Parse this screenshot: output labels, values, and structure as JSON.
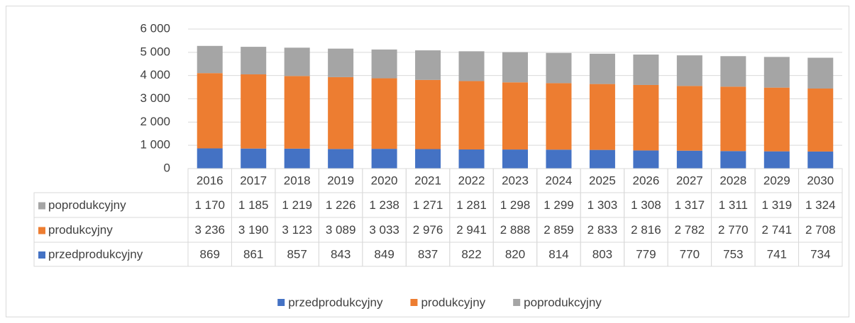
{
  "chart_data": {
    "type": "stacked_bar",
    "categories": [
      "2016",
      "2017",
      "2018",
      "2019",
      "2020",
      "2021",
      "2022",
      "2023",
      "2024",
      "2025",
      "2026",
      "2027",
      "2028",
      "2029",
      "2030"
    ],
    "series": [
      {
        "name": "przedprodukcyjny",
        "color": "#4472c4",
        "values": [
          869,
          861,
          857,
          843,
          849,
          837,
          822,
          820,
          814,
          803,
          779,
          770,
          753,
          741,
          734
        ]
      },
      {
        "name": "produkcyjny",
        "color": "#ed7d31",
        "values": [
          3236,
          3190,
          3123,
          3089,
          3033,
          2976,
          2941,
          2888,
          2859,
          2833,
          2816,
          2782,
          2770,
          2741,
          2708
        ],
        "value_labels": [
          "3 236",
          "3 190",
          "3 123",
          "3 089",
          "3 033",
          "2 976",
          "2 941",
          "2 888",
          "2 859",
          "2 833",
          "2 816",
          "2 782",
          "2 770",
          "2 741",
          "2 708"
        ]
      },
      {
        "name": "poprodukcyjny",
        "color": "#a5a5a5",
        "values": [
          1170,
          1185,
          1219,
          1226,
          1238,
          1271,
          1281,
          1298,
          1299,
          1303,
          1308,
          1317,
          1311,
          1319,
          1324
        ],
        "value_labels": [
          "1 170",
          "1 185",
          "1 219",
          "1 226",
          "1 238",
          "1 271",
          "1 281",
          "1 298",
          "1 299",
          "1 303",
          "1 308",
          "1 317",
          "1 311",
          "1 319",
          "1 324"
        ]
      }
    ],
    "ylim": [
      0,
      6000
    ],
    "yticks": [
      0,
      {
        "value": 1000,
        "label": "1 000"
      },
      {
        "value": 2000,
        "label": "2 000"
      },
      {
        "value": 3000,
        "label": "3 000"
      },
      {
        "value": 4000,
        "label": "4 000"
      },
      {
        "value": 5000,
        "label": "5 000"
      },
      {
        "value": 6000,
        "label": "6 000"
      }
    ],
    "grid": true,
    "legend": "bottom"
  }
}
